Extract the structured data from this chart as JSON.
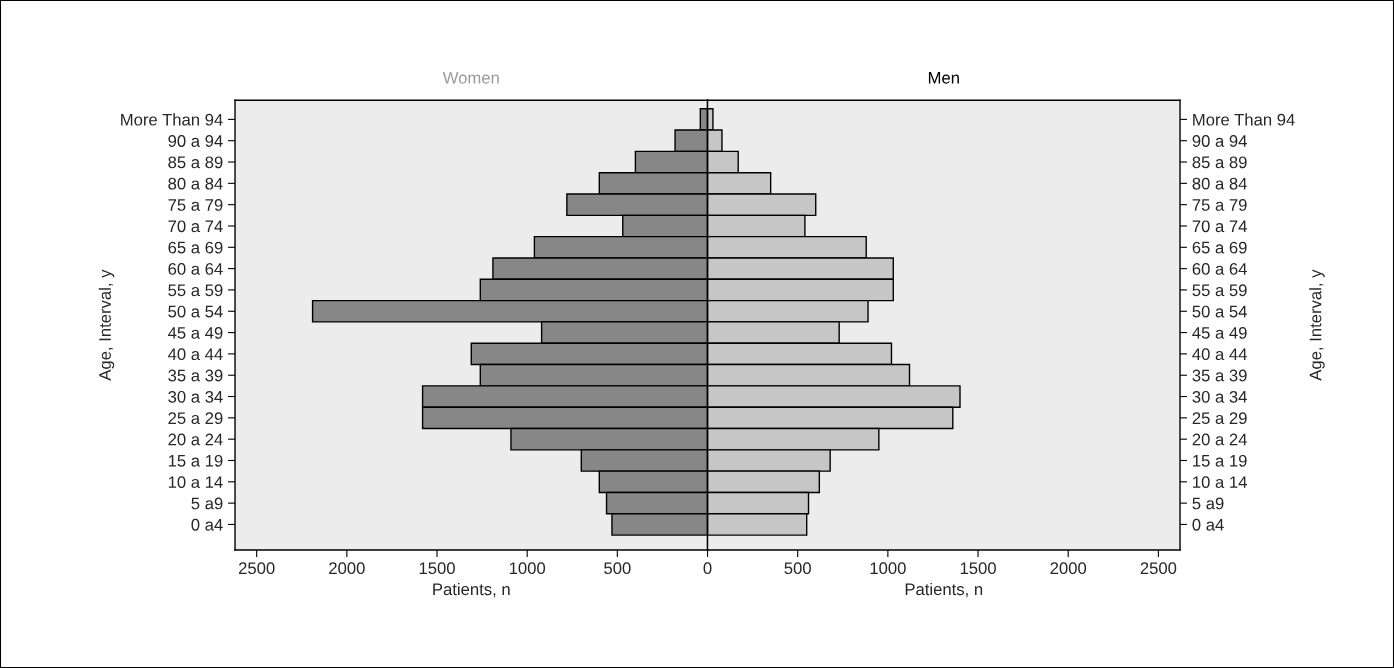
{
  "chart_data": [
    {
      "type": "bar",
      "orientation": "horizontal",
      "title": "Women",
      "xlabel": "Patients, n",
      "ylabel": "Age, Interval, y",
      "categories": [
        "More Than 94",
        "90 a 94",
        "85 a 89",
        "80 a 84",
        "75 a 79",
        "70 a 74",
        "65 a 69",
        "60 a 64",
        "55 a 59",
        "50 a 54",
        "45 a 49",
        "40 a 44",
        "35 a 39",
        "30 a 34",
        "25 a 29",
        "20 a 24",
        "15 a 19",
        "10 a 14",
        "5 a9",
        "0 a4"
      ],
      "values": [
        40,
        180,
        400,
        600,
        780,
        470,
        960,
        1190,
        1260,
        2190,
        920,
        1310,
        1260,
        1580,
        1580,
        1090,
        700,
        600,
        560,
        530
      ],
      "color": "#878787",
      "xlim": [
        2620,
        0
      ],
      "xticks": [
        2500,
        2000,
        1500,
        1000,
        500
      ],
      "grid": false
    },
    {
      "type": "bar",
      "orientation": "horizontal",
      "title": "Men",
      "xlabel": "Patients, n",
      "ylabel": "Age, Interval, y",
      "categories": [
        "More Than 94",
        "90 a 94",
        "85 a 89",
        "80 a 84",
        "75 a 79",
        "70 a 74",
        "65 a 69",
        "60 a 64",
        "55 a 59",
        "50 a 54",
        "45 a 49",
        "40 a 44",
        "35 a 39",
        "30 a 34",
        "25 a 29",
        "20 a 24",
        "15 a 19",
        "10 a 14",
        "5 a9",
        "0 a4"
      ],
      "values": [
        30,
        80,
        170,
        350,
        600,
        540,
        880,
        1030,
        1030,
        890,
        730,
        1020,
        1120,
        1400,
        1360,
        950,
        680,
        620,
        560,
        550
      ],
      "color": "#c6c6c6",
      "xlim": [
        0,
        2620
      ],
      "xticks": [
        0,
        500,
        1000,
        1500,
        2000,
        2500
      ],
      "grid": false
    }
  ]
}
